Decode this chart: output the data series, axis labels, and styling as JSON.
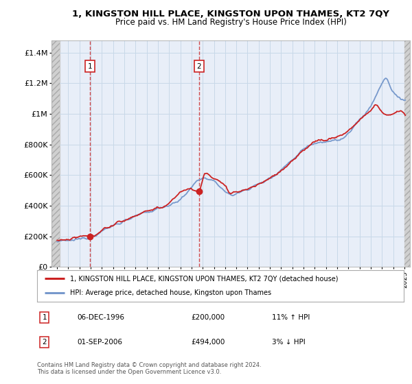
{
  "title": "1, KINGSTON HILL PLACE, KINGSTON UPON THAMES, KT2 7QY",
  "subtitle": "Price paid vs. HM Land Registry's House Price Index (HPI)",
  "ylabel_ticks": [
    "£0",
    "£200K",
    "£400K",
    "£600K",
    "£800K",
    "£1M",
    "£1.2M",
    "£1.4M"
  ],
  "ytick_vals": [
    0,
    200000,
    400000,
    600000,
    800000,
    1000000,
    1200000,
    1400000
  ],
  "ylim": [
    0,
    1480000
  ],
  "xlim": [
    1993.5,
    2025.5
  ],
  "purchase1": {
    "year": 1996.92,
    "price": 200000,
    "label": "1"
  },
  "purchase2": {
    "year": 2006.67,
    "price": 494000,
    "label": "2"
  },
  "legend1": "1, KINGSTON HILL PLACE, KINGSTON UPON THAMES, KT2 7QY (detached house)",
  "legend2": "HPI: Average price, detached house, Kingston upon Thames",
  "annotation1": [
    "1",
    "06-DEC-1996",
    "£200,000",
    "11% ↑ HPI"
  ],
  "annotation2": [
    "2",
    "01-SEP-2006",
    "£494,000",
    "3% ↓ HPI"
  ],
  "footer": "Contains HM Land Registry data © Crown copyright and database right 2024.\nThis data is licensed under the Open Government Licence v3.0.",
  "line_color_red": "#cc2222",
  "line_color_blue": "#7799cc",
  "grid_color": "#c8d8e8",
  "bg_light_blue": "#e8eef8",
  "hatch_bg": "#d8d8d8",
  "dashed_color": "#cc2222"
}
